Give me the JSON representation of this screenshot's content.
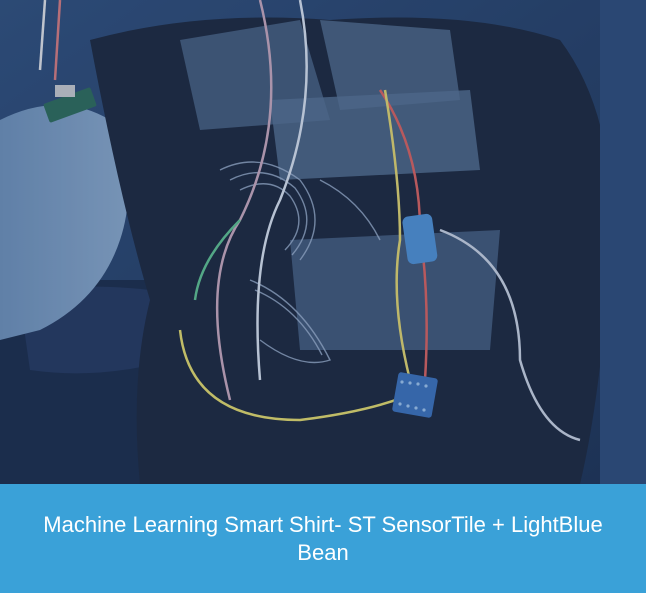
{
  "card": {
    "caption": "Machine Learning Smart Shirt- ST SensorTile + LightBlue Bean"
  },
  "photo": {
    "overlay_color": "#1f3f6e",
    "caption_bg": "#3aa1d8"
  }
}
